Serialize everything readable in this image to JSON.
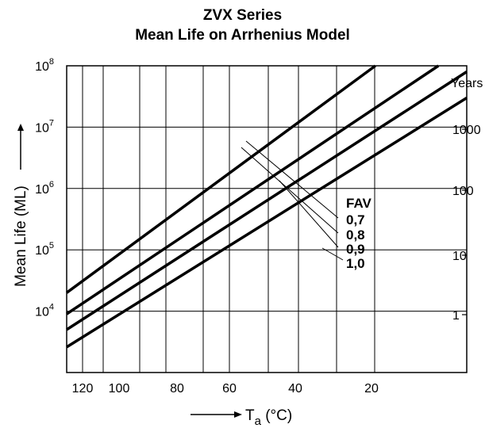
{
  "chart_data": {
    "type": "line",
    "title": "ZVX Series",
    "subtitle": "Mean Life on Arrhenius Model",
    "ylabel": "Mean Life (ML)",
    "xlabel_main": "T",
    "xlabel_sub": "a",
    "xlabel_unit": " (°C)",
    "y2label": "Years",
    "x_ticks": [
      "120",
      "100",
      "80",
      "60",
      "40",
      "20"
    ],
    "y_ticks": [
      {
        "base": "10",
        "exp": "4"
      },
      {
        "base": "10",
        "exp": "5"
      },
      {
        "base": "10",
        "exp": "6"
      },
      {
        "base": "10",
        "exp": "7"
      },
      {
        "base": "10",
        "exp": "8"
      }
    ],
    "y2_ticks": [
      "1",
      "10",
      "100",
      "1000"
    ],
    "legend_title": "FAV",
    "legend": [
      "0,7",
      "0,8",
      "0,9",
      "1,0"
    ],
    "xlim": [
      127,
      0
    ],
    "ylim": [
      1000,
      100000000
    ],
    "y_scale": "log",
    "series": [
      {
        "name": "0,7",
        "points": [
          [
            127,
            20000
          ],
          [
            29,
            100000000
          ]
        ]
      },
      {
        "name": "0,8",
        "points": [
          [
            127,
            9000
          ],
          [
            9,
            100000000
          ]
        ]
      },
      {
        "name": "0,9",
        "points": [
          [
            127,
            5000
          ],
          [
            0,
            80000000
          ]
        ]
      },
      {
        "name": "1,0",
        "points": [
          [
            127,
            2600
          ],
          [
            0,
            30000000
          ]
        ]
      }
    ]
  }
}
